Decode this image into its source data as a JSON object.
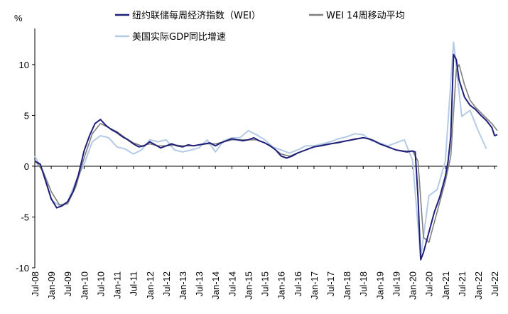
{
  "chart_data": {
    "type": "line",
    "y_unit_label": "%",
    "ylim": [
      -10,
      13
    ],
    "y_ticks": [
      10,
      5,
      0,
      -5,
      -10
    ],
    "x_range": [
      "2008-07",
      "2022-08"
    ],
    "x_ticks": [
      "Jul-08",
      "Jan-09",
      "Jul-09",
      "Jan-10",
      "Jul-10",
      "Jan-11",
      "Jul-11",
      "Jan-12",
      "Jul-12",
      "Jan-13",
      "Jul-13",
      "Jan-14",
      "Jul-14",
      "Jan-15",
      "Jul-15",
      "Jan-16",
      "Jul-16",
      "Jan-17",
      "Jul-17",
      "Jan-18",
      "Jul-18",
      "Jan-19",
      "Jul-19",
      "Jan-20",
      "Jul-20",
      "Jan-21",
      "Jul-21",
      "Jan-22",
      "Jul-22"
    ],
    "grid": false,
    "legend_position": "top",
    "series": [
      {
        "name": "纽约联储每周经济指数（WEI）",
        "color": "#1f1f7a",
        "points": [
          [
            "2008-07",
            0.5
          ],
          [
            "2008-09",
            0.2
          ],
          [
            "2008-11",
            -1.5
          ],
          [
            "2009-01",
            -3.2
          ],
          [
            "2009-03",
            -4.1
          ],
          [
            "2009-05",
            -3.9
          ],
          [
            "2009-07",
            -3.5
          ],
          [
            "2009-09",
            -2.5
          ],
          [
            "2009-11",
            -0.8
          ],
          [
            "2010-01",
            1.5
          ],
          [
            "2010-03",
            3.0
          ],
          [
            "2010-05",
            4.2
          ],
          [
            "2010-07",
            4.6
          ],
          [
            "2010-09",
            4.0
          ],
          [
            "2010-11",
            3.6
          ],
          [
            "2011-01",
            3.3
          ],
          [
            "2011-03",
            2.9
          ],
          [
            "2011-05",
            2.6
          ],
          [
            "2011-07",
            2.2
          ],
          [
            "2011-09",
            1.9
          ],
          [
            "2011-11",
            2.0
          ],
          [
            "2012-01",
            2.4
          ],
          [
            "2012-03",
            2.1
          ],
          [
            "2012-05",
            1.8
          ],
          [
            "2012-07",
            2.0
          ],
          [
            "2012-09",
            2.2
          ],
          [
            "2012-11",
            2.0
          ],
          [
            "2013-01",
            1.9
          ],
          [
            "2013-03",
            2.1
          ],
          [
            "2013-05",
            2.0
          ],
          [
            "2013-07",
            2.1
          ],
          [
            "2013-09",
            2.2
          ],
          [
            "2013-11",
            2.3
          ],
          [
            "2014-01",
            2.0
          ],
          [
            "2014-03",
            2.3
          ],
          [
            "2014-05",
            2.5
          ],
          [
            "2014-07",
            2.7
          ],
          [
            "2014-09",
            2.6
          ],
          [
            "2014-11",
            2.5
          ],
          [
            "2015-01",
            2.6
          ],
          [
            "2015-03",
            2.8
          ],
          [
            "2015-05",
            2.5
          ],
          [
            "2015-07",
            2.3
          ],
          [
            "2015-09",
            2.0
          ],
          [
            "2015-11",
            1.6
          ],
          [
            "2016-01",
            1.0
          ],
          [
            "2016-03",
            0.8
          ],
          [
            "2016-05",
            1.0
          ],
          [
            "2016-07",
            1.3
          ],
          [
            "2016-09",
            1.5
          ],
          [
            "2016-11",
            1.7
          ],
          [
            "2017-01",
            1.9
          ],
          [
            "2017-03",
            2.0
          ],
          [
            "2017-05",
            2.1
          ],
          [
            "2017-07",
            2.2
          ],
          [
            "2017-09",
            2.3
          ],
          [
            "2017-11",
            2.4
          ],
          [
            "2018-01",
            2.5
          ],
          [
            "2018-03",
            2.6
          ],
          [
            "2018-05",
            2.7
          ],
          [
            "2018-07",
            2.8
          ],
          [
            "2018-09",
            2.7
          ],
          [
            "2018-11",
            2.5
          ],
          [
            "2019-01",
            2.2
          ],
          [
            "2019-03",
            2.0
          ],
          [
            "2019-05",
            1.8
          ],
          [
            "2019-07",
            1.6
          ],
          [
            "2019-09",
            1.5
          ],
          [
            "2019-11",
            1.4
          ],
          [
            "2020-01",
            1.5
          ],
          [
            "2020-02",
            1.4
          ],
          [
            "2020-03",
            -3.0
          ],
          [
            "2020-04",
            -9.2
          ],
          [
            "2020-05",
            -8.5
          ],
          [
            "2020-07",
            -6.5
          ],
          [
            "2020-09",
            -4.5
          ],
          [
            "2020-11",
            -3.0
          ],
          [
            "2021-01",
            -1.0
          ],
          [
            "2021-02",
            0.5
          ],
          [
            "2021-03",
            3.0
          ],
          [
            "2021-04",
            11.0
          ],
          [
            "2021-05",
            10.5
          ],
          [
            "2021-06",
            8.5
          ],
          [
            "2021-08",
            6.8
          ],
          [
            "2021-10",
            6.0
          ],
          [
            "2021-12",
            5.6
          ],
          [
            "2022-02",
            5.0
          ],
          [
            "2022-04",
            4.5
          ],
          [
            "2022-06",
            3.8
          ],
          [
            "2022-07",
            3.0
          ],
          [
            "2022-08",
            3.1
          ]
        ]
      },
      {
        "name": "WEI 14周移动平均",
        "color": "#7f7f7f",
        "points": [
          [
            "2008-07",
            0.6
          ],
          [
            "2008-10",
            -0.5
          ],
          [
            "2009-01",
            -2.5
          ],
          [
            "2009-04",
            -3.8
          ],
          [
            "2009-07",
            -3.7
          ],
          [
            "2009-10",
            -2.0
          ],
          [
            "2010-01",
            0.8
          ],
          [
            "2010-04",
            3.2
          ],
          [
            "2010-07",
            4.2
          ],
          [
            "2010-10",
            3.8
          ],
          [
            "2011-01",
            3.4
          ],
          [
            "2011-04",
            2.8
          ],
          [
            "2011-07",
            2.3
          ],
          [
            "2011-10",
            2.0
          ],
          [
            "2012-01",
            2.2
          ],
          [
            "2012-04",
            2.0
          ],
          [
            "2012-07",
            2.0
          ],
          [
            "2012-10",
            2.1
          ],
          [
            "2013-01",
            2.0
          ],
          [
            "2013-04",
            2.0
          ],
          [
            "2013-07",
            2.1
          ],
          [
            "2013-10",
            2.2
          ],
          [
            "2014-01",
            2.2
          ],
          [
            "2014-04",
            2.4
          ],
          [
            "2014-07",
            2.6
          ],
          [
            "2014-10",
            2.6
          ],
          [
            "2015-01",
            2.6
          ],
          [
            "2015-04",
            2.6
          ],
          [
            "2015-07",
            2.3
          ],
          [
            "2015-10",
            1.8
          ],
          [
            "2016-01",
            1.2
          ],
          [
            "2016-04",
            1.0
          ],
          [
            "2016-07",
            1.3
          ],
          [
            "2016-10",
            1.6
          ],
          [
            "2017-01",
            1.9
          ],
          [
            "2017-04",
            2.0
          ],
          [
            "2017-07",
            2.2
          ],
          [
            "2017-10",
            2.3
          ],
          [
            "2018-01",
            2.5
          ],
          [
            "2018-04",
            2.7
          ],
          [
            "2018-07",
            2.8
          ],
          [
            "2018-10",
            2.6
          ],
          [
            "2019-01",
            2.2
          ],
          [
            "2019-04",
            1.9
          ],
          [
            "2019-07",
            1.6
          ],
          [
            "2019-10",
            1.5
          ],
          [
            "2020-01",
            1.5
          ],
          [
            "2020-03",
            0.5
          ],
          [
            "2020-05",
            -7.0
          ],
          [
            "2020-07",
            -7.5
          ],
          [
            "2020-09",
            -5.5
          ],
          [
            "2020-11",
            -3.5
          ],
          [
            "2021-01",
            -1.5
          ],
          [
            "2021-03",
            1.0
          ],
          [
            "2021-05",
            9.5
          ],
          [
            "2021-06",
            10.0
          ],
          [
            "2021-08",
            8.0
          ],
          [
            "2021-10",
            6.5
          ],
          [
            "2021-12",
            5.8
          ],
          [
            "2022-03",
            5.0
          ],
          [
            "2022-06",
            4.2
          ],
          [
            "2022-08",
            3.5
          ]
        ]
      },
      {
        "name": "美国实际GDP同比增速",
        "color": "#b4cbe6",
        "points": [
          [
            "2008-07",
            1.0
          ],
          [
            "2008-10",
            -0.5
          ],
          [
            "2009-01",
            -3.3
          ],
          [
            "2009-04",
            -3.9
          ],
          [
            "2009-07",
            -3.5
          ],
          [
            "2009-10",
            -1.5
          ],
          [
            "2010-01",
            0.2
          ],
          [
            "2010-04",
            2.4
          ],
          [
            "2010-07",
            3.0
          ],
          [
            "2010-10",
            2.8
          ],
          [
            "2011-01",
            1.9
          ],
          [
            "2011-04",
            1.7
          ],
          [
            "2011-07",
            1.2
          ],
          [
            "2011-10",
            1.6
          ],
          [
            "2012-01",
            2.6
          ],
          [
            "2012-04",
            2.4
          ],
          [
            "2012-07",
            2.6
          ],
          [
            "2012-10",
            1.6
          ],
          [
            "2013-01",
            1.4
          ],
          [
            "2013-04",
            1.6
          ],
          [
            "2013-07",
            1.8
          ],
          [
            "2013-10",
            2.6
          ],
          [
            "2014-01",
            1.4
          ],
          [
            "2014-04",
            2.5
          ],
          [
            "2014-07",
            2.8
          ],
          [
            "2014-10",
            2.8
          ],
          [
            "2015-01",
            3.5
          ],
          [
            "2015-04",
            3.1
          ],
          [
            "2015-07",
            2.6
          ],
          [
            "2015-10",
            1.9
          ],
          [
            "2016-01",
            1.6
          ],
          [
            "2016-04",
            1.3
          ],
          [
            "2016-07",
            1.6
          ],
          [
            "2016-10",
            2.0
          ],
          [
            "2017-01",
            2.0
          ],
          [
            "2017-04",
            2.2
          ],
          [
            "2017-07",
            2.4
          ],
          [
            "2017-10",
            2.7
          ],
          [
            "2018-01",
            2.9
          ],
          [
            "2018-04",
            3.2
          ],
          [
            "2018-07",
            3.1
          ],
          [
            "2018-10",
            2.5
          ],
          [
            "2019-01",
            2.3
          ],
          [
            "2019-04",
            2.0
          ],
          [
            "2019-07",
            2.3
          ],
          [
            "2019-10",
            2.6
          ],
          [
            "2020-01",
            0.6
          ],
          [
            "2020-04",
            -9.0
          ],
          [
            "2020-07",
            -2.9
          ],
          [
            "2020-10",
            -2.3
          ],
          [
            "2021-01",
            0.5
          ],
          [
            "2021-04",
            12.2
          ],
          [
            "2021-07",
            4.9
          ],
          [
            "2021-10",
            5.5
          ],
          [
            "2022-01",
            3.5
          ],
          [
            "2022-04",
            1.7
          ]
        ]
      }
    ]
  }
}
